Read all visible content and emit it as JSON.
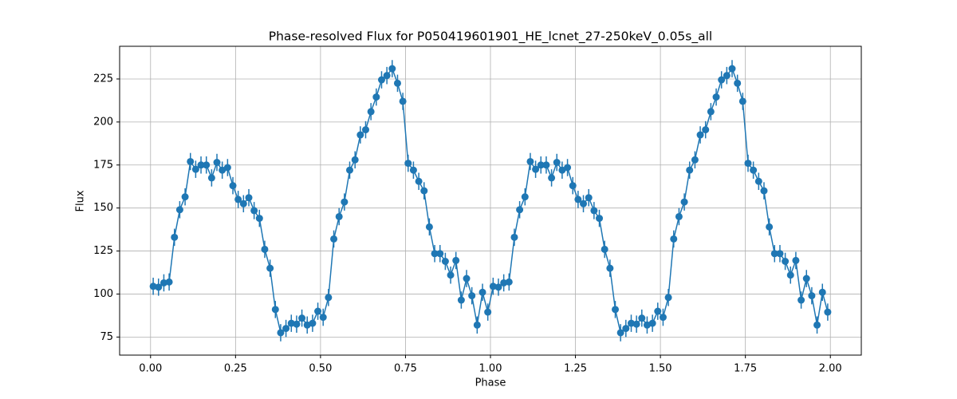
{
  "chart_data": {
    "type": "errorbar-line",
    "title": "Phase-resolved Flux for P050419601901_HE_lcnet_27-250keV_0.05s_all",
    "x_label": "Phase",
    "y_label": "Flux",
    "x": [
      0.0078,
      0.0234,
      0.0391,
      0.0547,
      0.0703,
      0.0859,
      0.1016,
      0.1172,
      0.1328,
      0.1484,
      0.1641,
      0.1797,
      0.1953,
      0.2109,
      0.2266,
      0.2422,
      0.2578,
      0.2734,
      0.2891,
      0.3047,
      0.3203,
      0.3359,
      0.3516,
      0.3672,
      0.3828,
      0.3984,
      0.4141,
      0.4297,
      0.4453,
      0.4609,
      0.4766,
      0.4922,
      0.5078,
      0.5234,
      0.5391,
      0.5547,
      0.5703,
      0.5859,
      0.6016,
      0.6172,
      0.6328,
      0.6484,
      0.6641,
      0.6797,
      0.6953,
      0.7109,
      0.7266,
      0.7422,
      0.7578,
      0.7734,
      0.7891,
      0.8047,
      0.8203,
      0.8359,
      0.8516,
      0.8672,
      0.8828,
      0.8984,
      0.9141,
      0.9297,
      0.9453,
      0.9609,
      0.9766,
      0.9922,
      1.0078,
      1.0234,
      1.0391,
      1.0547,
      1.0703,
      1.0859,
      1.1016,
      1.1172,
      1.1328,
      1.1484,
      1.1641,
      1.1797,
      1.1953,
      1.2109,
      1.2266,
      1.2422,
      1.2578,
      1.2734,
      1.2891,
      1.3047,
      1.3203,
      1.3359,
      1.3516,
      1.3672,
      1.3828,
      1.3984,
      1.4141,
      1.4297,
      1.4453,
      1.4609,
      1.4766,
      1.4922,
      1.5078,
      1.5234,
      1.5391,
      1.5547,
      1.5703,
      1.5859,
      1.6016,
      1.6172,
      1.6328,
      1.6484,
      1.6641,
      1.6797,
      1.6953,
      1.7109,
      1.7266,
      1.7422,
      1.7578,
      1.7734,
      1.7891,
      1.8047,
      1.8203,
      1.8359,
      1.8516,
      1.8672,
      1.8828,
      1.8984,
      1.9141,
      1.9297,
      1.9453,
      1.9609,
      1.9766,
      1.9922
    ],
    "series": [
      {
        "color": "#1f77b4",
        "values": [
          104.5,
          104,
          106.5,
          107,
          133,
          149,
          156.5,
          177,
          172.5,
          175,
          175,
          167.5,
          176.5,
          172,
          173.5,
          163,
          155,
          152.5,
          156,
          148.5,
          144,
          126,
          115,
          91,
          77.5,
          80,
          83,
          82.5,
          86,
          82,
          83,
          90,
          86.5,
          98,
          132,
          145,
          153.5,
          172,
          178,
          192.5,
          195.5,
          206,
          214.5,
          224.5,
          227,
          231,
          222.5,
          212,
          176,
          172,
          165.5,
          160,
          139,
          123.5,
          123.5,
          119,
          111,
          119.5,
          96.5,
          109,
          99,
          82,
          101,
          89.5,
          104.5,
          104,
          106.5,
          107,
          133,
          149,
          156.5,
          177,
          172.5,
          175,
          175,
          167.5,
          176.5,
          172,
          173.5,
          163,
          155,
          152.5,
          156,
          148.5,
          144,
          126,
          115,
          91,
          77.5,
          80,
          83,
          82.5,
          86,
          82,
          83,
          90,
          86.5,
          98,
          132,
          145,
          153.5,
          172,
          178,
          192.5,
          195.5,
          206,
          214.5,
          224.5,
          227,
          231,
          222.5,
          212,
          176,
          172,
          165.5,
          160,
          139,
          123.5,
          123.5,
          119,
          111,
          119.5,
          96.5,
          109,
          99,
          82,
          101,
          89.5
        ],
        "errors": [
          5,
          5,
          5,
          5,
          5,
          5,
          5,
          5,
          5,
          5,
          5,
          5,
          5,
          5,
          5,
          5,
          5,
          5,
          5,
          5,
          5,
          5,
          5,
          5,
          5,
          5,
          5,
          5,
          5,
          5,
          5,
          5,
          5,
          5,
          5,
          5,
          5,
          5,
          5,
          5,
          5,
          5,
          5,
          5,
          5,
          5,
          5,
          5,
          5,
          5,
          5,
          5,
          5,
          5,
          5,
          5,
          5,
          5,
          5,
          5,
          5,
          5,
          5,
          5,
          5,
          5,
          5,
          5,
          5,
          5,
          5,
          5,
          5,
          5,
          5,
          5,
          5,
          5,
          5,
          5,
          5,
          5,
          5,
          5,
          5,
          5,
          5,
          5,
          5,
          5,
          5,
          5,
          5,
          5,
          5,
          5,
          5,
          5,
          5,
          5,
          5,
          5,
          5,
          5,
          5,
          5,
          5,
          5,
          5,
          5,
          5,
          5,
          5,
          5,
          5,
          5,
          5,
          5,
          5,
          5,
          5,
          5,
          5,
          5,
          5,
          5,
          5,
          5
        ]
      }
    ],
    "xlim": [
      -0.091,
      2.091
    ],
    "ylim": [
      64.5,
      244
    ],
    "xticks": [
      {
        "value": 0,
        "label": "0.00"
      },
      {
        "value": 0.25,
        "label": "0.25"
      },
      {
        "value": 0.5,
        "label": "0.50"
      },
      {
        "value": 0.75,
        "label": "0.75"
      },
      {
        "value": 1,
        "label": "1.00"
      },
      {
        "value": 1.25,
        "label": "1.25"
      },
      {
        "value": 1.5,
        "label": "1.50"
      },
      {
        "value": 1.75,
        "label": "1.75"
      },
      {
        "value": 2,
        "label": "2.00"
      }
    ],
    "yticks": [
      75,
      100,
      125,
      150,
      175,
      200,
      225
    ],
    "grid": true
  }
}
